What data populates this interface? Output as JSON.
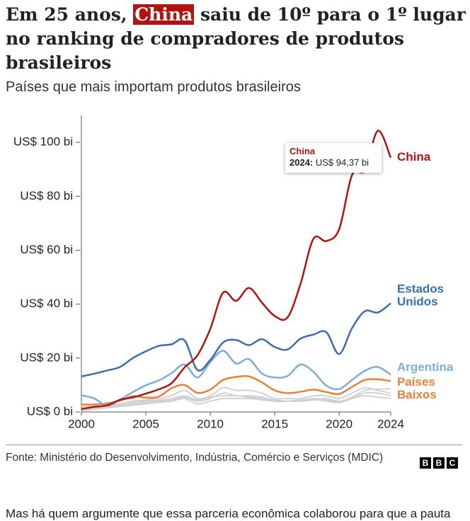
{
  "chart_data": {
    "type": "line",
    "title_before": "Em 25 anos,",
    "title_highlight": "China",
    "title_after": "saiu de 10º para o 1º lugar no ranking de compradores de produtos brasileiros",
    "subtitle": "Países que mais importam produtos brasileiros",
    "x": [
      2000,
      2001,
      2002,
      2003,
      2004,
      2005,
      2006,
      2007,
      2008,
      2009,
      2010,
      2011,
      2012,
      2013,
      2014,
      2015,
      2016,
      2017,
      2018,
      2019,
      2020,
      2021,
      2022,
      2023,
      2024
    ],
    "xlim": [
      2000,
      2024
    ],
    "xticks": [
      2000,
      2005,
      2010,
      2015,
      2020,
      2024
    ],
    "ylim": [
      0,
      110
    ],
    "yticks": [
      {
        "value": 0,
        "label": "US$ 0 bi"
      },
      {
        "value": 20,
        "label": "US$ 20 bi"
      },
      {
        "value": 40,
        "label": "US$ 40 bi"
      },
      {
        "value": 60,
        "label": "US$ 60 bi"
      },
      {
        "value": 80,
        "label": "US$ 80 bi"
      },
      {
        "value": 100,
        "label": "US$ 100 bi"
      }
    ],
    "grid": false,
    "series": [
      {
        "color": "#cfcfcf",
        "values": [
          1.5,
          2,
          2.5,
          3,
          4,
          4.5,
          5,
          6,
          8,
          5,
          6,
          9,
          8,
          8,
          7,
          5,
          5,
          5,
          6,
          6,
          5,
          7,
          9,
          8,
          7
        ]
      },
      {
        "color": "#cfcfcf",
        "values": [
          0.5,
          1,
          1.5,
          2,
          2.5,
          3,
          3.5,
          4,
          5,
          3,
          4,
          5,
          5,
          5,
          4.5,
          4,
          4,
          4,
          4.5,
          5,
          4,
          5,
          6,
          5.5,
          5
        ]
      },
      {
        "color": "#cfcfcf",
        "values": [
          1,
          1.5,
          2,
          2.5,
          3,
          3.5,
          4,
          4.5,
          5.5,
          4,
          5,
          7,
          6,
          6,
          5.5,
          4.5,
          4,
          4,
          4.5,
          4,
          3.5,
          5,
          7,
          7,
          6
        ]
      },
      {
        "color": "#cfcfcf",
        "values": [
          2,
          2.2,
          2.4,
          3,
          3.6,
          4,
          4.4,
          5,
          6,
          4.5,
          5.5,
          6,
          6,
          5.5,
          5,
          4,
          4,
          4.5,
          5,
          4.5,
          3.8,
          5.5,
          8,
          8.5,
          8.5
        ]
      },
      {
        "name": "Países Baixos",
        "color": "#e8803a",
        "values": [
          2.8,
          2.8,
          3.2,
          4.2,
          5.9,
          5.3,
          5.7,
          8.8,
          10,
          7.1,
          8.3,
          11.9,
          13,
          13.2,
          11,
          8,
          7,
          7.5,
          8.3,
          7.4,
          6.7,
          9.3,
          11.9,
          12.1,
          11.5
        ]
      },
      {
        "name": "Argentina",
        "color": "#7bafd8",
        "values": [
          6.2,
          5,
          2.3,
          4.6,
          7.4,
          9.9,
          11.7,
          14.4,
          17.6,
          12.8,
          18.5,
          22.7,
          18,
          19.6,
          14.3,
          12.8,
          13.4,
          17.6,
          14.9,
          9.8,
          8.5,
          11.9,
          15.3,
          16.7,
          13.8
        ]
      },
      {
        "name": "Estados Unidos",
        "color": "#3a6eae",
        "values": [
          13.2,
          14.2,
          15.4,
          16.7,
          20,
          22.5,
          24.5,
          25.1,
          26.6,
          15.6,
          19.3,
          25.8,
          26.7,
          24.8,
          27,
          24.1,
          23.2,
          27.2,
          28.7,
          29.6,
          21.5,
          31.1,
          37.4,
          36.9,
          40.3
        ]
      },
      {
        "name": "China",
        "color": "#b3130f",
        "values": [
          1.1,
          1.9,
          2.5,
          4.5,
          5.4,
          6.8,
          8.4,
          10.7,
          16.5,
          21,
          30.8,
          44.3,
          41.2,
          46,
          40.6,
          35.6,
          35.1,
          47.5,
          64.2,
          63.4,
          67.8,
          87.9,
          89.7,
          104.3,
          94.37
        ]
      }
    ],
    "tooltip": {
      "series": "China",
      "x_label": "2024:",
      "value_label": "US$ 94,37 bi"
    },
    "source": "Fonte: Ministério do Desenvolvimento, Indústria, Comércio e Serviços (MDIC)",
    "logo": [
      "B",
      "B",
      "C"
    ],
    "body_text": "Mas há quem argumente que essa parceria econômica colaborou para que a pauta"
  }
}
